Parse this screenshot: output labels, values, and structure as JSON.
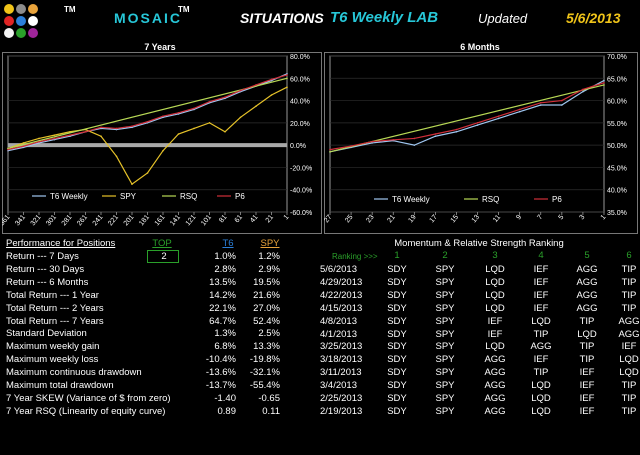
{
  "header": {
    "brand": "MOSAIC",
    "brand_tm": "TM",
    "logo_tm": "TM",
    "situations": "SITUATIONS",
    "lab_title": "T6 Weekly LAB",
    "updated_label": "Updated",
    "updated_date": "5/6/2013",
    "logo_colors": [
      "#f0c419",
      "#8c8c8c",
      "#e8a33b",
      "#e02424",
      "#2b7fd9",
      "#ffffff",
      "#f3f3f3",
      "#2aa02a",
      "#a0259b"
    ]
  },
  "chart_data": [
    {
      "type": "line",
      "title": "7 Years",
      "x_ticks": [
        "361",
        "341",
        "321",
        "301",
        "281",
        "261",
        "241",
        "221",
        "201",
        "181",
        "161",
        "141",
        "121",
        "101",
        "81",
        "61",
        "41",
        "21",
        "1"
      ],
      "y_ticks": [
        "80.0%",
        "60.0%",
        "40.0%",
        "20.0%",
        "0.0%",
        "-20.0%",
        "-40.0%",
        "-60.0%"
      ],
      "ylim": [
        -60,
        80
      ],
      "x_range": [
        361,
        1
      ],
      "legend": [
        "T6 Weekly",
        "SPY",
        "RSQ",
        "P6"
      ],
      "series": [
        {
          "name": "T6 Weekly",
          "color": "#9fc6f0",
          "x": [
            361,
            341,
            321,
            301,
            281,
            261,
            241,
            221,
            201,
            181,
            161,
            141,
            121,
            101,
            81,
            61,
            41,
            21,
            1
          ],
          "values": [
            -5,
            -2,
            2,
            5,
            8,
            12,
            15,
            14,
            16,
            20,
            25,
            28,
            32,
            38,
            42,
            48,
            53,
            58,
            64
          ]
        },
        {
          "name": "SPY",
          "color": "#e6c229",
          "x": [
            361,
            341,
            321,
            301,
            281,
            261,
            241,
            221,
            201,
            181,
            161,
            141,
            121,
            101,
            81,
            61,
            41,
            21,
            1
          ],
          "values": [
            -3,
            2,
            6,
            9,
            12,
            14,
            8,
            -10,
            -35,
            -25,
            -5,
            10,
            15,
            20,
            12,
            25,
            35,
            45,
            52
          ]
        },
        {
          "name": "RSQ",
          "color": "#b8d855",
          "x": [
            361,
            1
          ],
          "values": [
            -3,
            60
          ]
        },
        {
          "name": "P6",
          "color": "#d02f3a",
          "x": [
            361,
            341,
            321,
            301,
            281,
            261,
            241,
            221,
            201,
            181,
            161,
            141,
            121,
            101,
            81,
            61,
            41,
            21,
            1
          ],
          "values": [
            -4,
            -1,
            3,
            6,
            9,
            12,
            16,
            15,
            17,
            21,
            26,
            29,
            33,
            39,
            43,
            49,
            54,
            59,
            63
          ]
        }
      ],
      "bands": [
        {
          "y": 0,
          "color": "#a8a8a8"
        }
      ]
    },
    {
      "type": "line",
      "title": "6 Months",
      "x_ticks": [
        "27",
        "25",
        "23",
        "21",
        "19",
        "17",
        "15",
        "13",
        "11",
        "9",
        "7",
        "5",
        "3",
        "1"
      ],
      "y_ticks": [
        "70.0%",
        "65.0%",
        "60.0%",
        "55.0%",
        "50.0%",
        "45.0%",
        "40.0%",
        "35.0%"
      ],
      "ylim": [
        35,
        70
      ],
      "x_range": [
        27,
        1
      ],
      "legend": [
        "T6 Weekly",
        "RSQ",
        "P6"
      ],
      "series": [
        {
          "name": "T6 Weekly",
          "color": "#9fc6f0",
          "x": [
            27,
            25,
            23,
            21,
            19,
            17,
            15,
            13,
            11,
            9,
            7,
            5,
            3,
            1
          ],
          "values": [
            48.5,
            49.5,
            50.5,
            51,
            50,
            52,
            53,
            54.5,
            56,
            57.5,
            59,
            59,
            62,
            64.5
          ]
        },
        {
          "name": "RSQ",
          "color": "#b8d855",
          "x": [
            27,
            1
          ],
          "values": [
            48.5,
            63.5
          ]
        },
        {
          "name": "P6",
          "color": "#d02f3a",
          "x": [
            27,
            25,
            23,
            21,
            19,
            17,
            15,
            13,
            11,
            9,
            7,
            5,
            3,
            1
          ],
          "values": [
            49,
            49.8,
            50.8,
            51.2,
            51.5,
            52.5,
            53.5,
            55,
            56.5,
            58,
            59.5,
            60,
            62.5,
            64
          ]
        }
      ]
    }
  ],
  "performance": {
    "title": "Performance for Positions",
    "col_top": "TOP",
    "col_t6": "T6",
    "col_spy": "SPY",
    "top_value": "2",
    "rows": [
      {
        "label": "Return --- 7 Days",
        "t6": "1.0%",
        "spy": "1.2%"
      },
      {
        "label": "Return --- 30 Days",
        "t6": "2.8%",
        "spy": "2.9%"
      },
      {
        "label": "Return --- 6 Months",
        "t6": "13.5%",
        "spy": "19.5%"
      },
      {
        "label": "Total Return --- 1 Year",
        "t6": "14.2%",
        "spy": "21.6%"
      },
      {
        "label": "Total Return --- 2 Years",
        "t6": "22.1%",
        "spy": "27.0%"
      },
      {
        "label": "Total Return --- 7 Years",
        "t6": "64.7%",
        "spy": "52.4%"
      },
      {
        "label": "Standard Deviation",
        "t6": "1.3%",
        "spy": "2.5%"
      },
      {
        "label": "Maximum weekly gain",
        "t6": "6.8%",
        "spy": "13.3%"
      },
      {
        "label": "Maximum weekly loss",
        "t6": "-10.4%",
        "spy": "-19.8%"
      },
      {
        "label": "Maximum continuous drawdown",
        "t6": "-13.6%",
        "spy": "-32.1%"
      },
      {
        "label": "Maximum total drawdown",
        "t6": "-13.7%",
        "spy": "-55.4%"
      },
      {
        "label": "7 Year SKEW (Variance of $ from zero)",
        "t6": "-1.40",
        "spy": "-0.65"
      },
      {
        "label": "7 Year RSQ (Linearity of equity curve)",
        "t6": "0.89",
        "spy": "0.11"
      }
    ]
  },
  "ranking": {
    "title": "Momentum & Relative Strength Ranking",
    "ranking_label": "Ranking >>>",
    "columns": [
      "1",
      "2",
      "3",
      "4",
      "5",
      "6"
    ],
    "rows": [
      {
        "date": "5/6/2013",
        "r": [
          "SDY",
          "SPY",
          "LQD",
          "IEF",
          "AGG",
          "TIP"
        ]
      },
      {
        "date": "4/29/2013",
        "r": [
          "SDY",
          "SPY",
          "LQD",
          "IEF",
          "AGG",
          "TIP"
        ]
      },
      {
        "date": "4/22/2013",
        "r": [
          "SDY",
          "SPY",
          "LQD",
          "IEF",
          "AGG",
          "TIP"
        ]
      },
      {
        "date": "4/15/2013",
        "r": [
          "SDY",
          "SPY",
          "LQD",
          "IEF",
          "AGG",
          "TIP"
        ]
      },
      {
        "date": "4/8/2013",
        "r": [
          "SDY",
          "SPY",
          "IEF",
          "LQD",
          "TIP",
          "AGG"
        ]
      },
      {
        "date": "4/1/2013",
        "r": [
          "SDY",
          "SPY",
          "IEF",
          "TIP",
          "LQD",
          "AGG"
        ]
      },
      {
        "date": "3/25/2013",
        "r": [
          "SDY",
          "SPY",
          "LQD",
          "AGG",
          "TIP",
          "IEF"
        ]
      },
      {
        "date": "3/18/2013",
        "r": [
          "SDY",
          "SPY",
          "AGG",
          "IEF",
          "TIP",
          "LQD"
        ]
      },
      {
        "date": "3/11/2013",
        "r": [
          "SDY",
          "SPY",
          "AGG",
          "TIP",
          "IEF",
          "LQD"
        ]
      },
      {
        "date": "3/4/2013",
        "r": [
          "SDY",
          "SPY",
          "AGG",
          "LQD",
          "IEF",
          "TIP"
        ]
      },
      {
        "date": "2/25/2013",
        "r": [
          "SDY",
          "SPY",
          "AGG",
          "LQD",
          "IEF",
          "TIP"
        ]
      },
      {
        "date": "2/19/2013",
        "r": [
          "SDY",
          "SPY",
          "AGG",
          "LQD",
          "IEF",
          "TIP"
        ]
      }
    ]
  }
}
